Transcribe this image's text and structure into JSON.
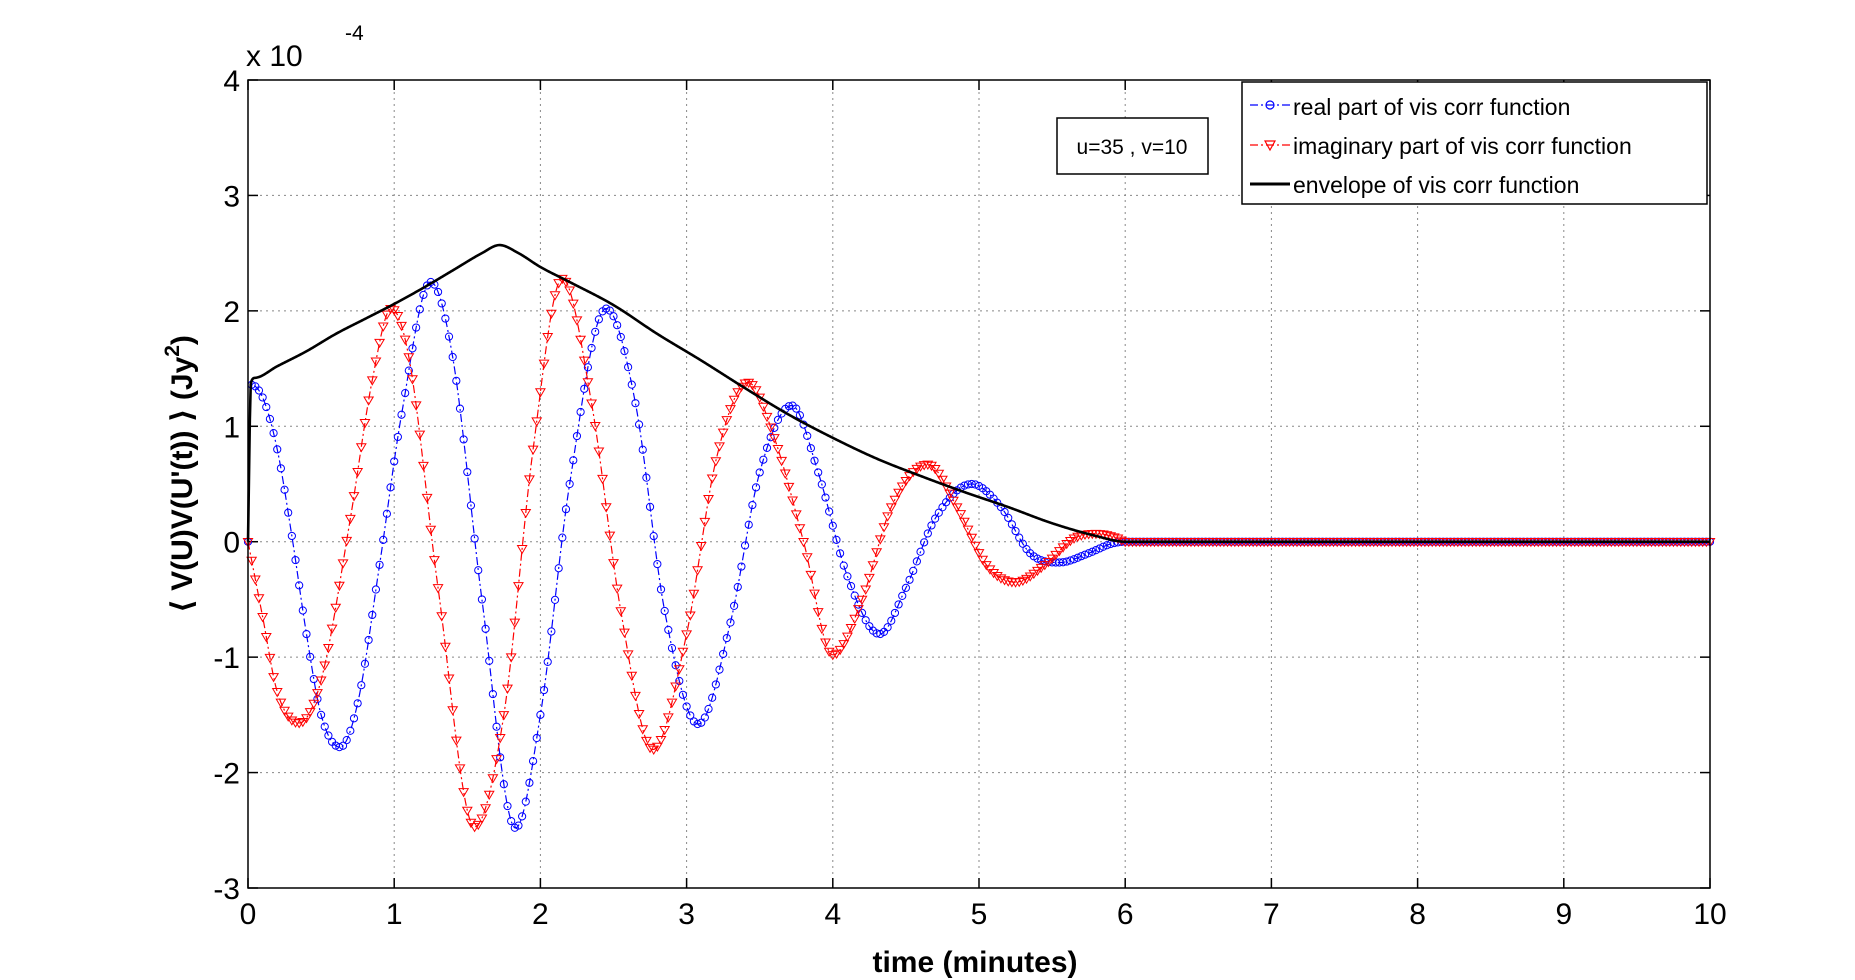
{
  "chart_data": {
    "type": "line",
    "title": "",
    "xlabel": "time (minutes)",
    "ylabel": "⟨ V(U)V(U'(t)) ⟩ (Jy",
    "ylabel_sup": "2",
    "ylabel_tail": ")",
    "xlim": [
      0,
      10
    ],
    "ylim": [
      -3,
      4
    ],
    "y_scale_prefix": "x 10",
    "y_scale_exponent": "-4",
    "xticks": [
      "0",
      "1",
      "2",
      "3",
      "4",
      "5",
      "6",
      "7",
      "8",
      "9",
      "10"
    ],
    "yticks": [
      "-3",
      "-2",
      "-1",
      "0",
      "1",
      "2",
      "3",
      "4"
    ],
    "grid": true,
    "legend_position": "top-right",
    "annotation": "u=35 , v=10",
    "envelope_peak_time": 1.72,
    "envelope_peak_value": 2.57,
    "signal_end_time": 6.0,
    "series": [
      {
        "name": "real part of vis corr function",
        "color": "#0000ff",
        "marker": "circle",
        "line": "dashdot",
        "x": [
          0,
          0.02,
          0.1,
          0.2,
          0.3,
          0.4,
          0.5,
          0.63,
          0.75,
          0.9,
          1.05,
          1.25,
          1.4,
          1.6,
          1.83,
          2.0,
          2.2,
          2.45,
          2.65,
          2.85,
          3.08,
          3.3,
          3.5,
          3.72,
          3.9,
          4.1,
          4.32,
          4.5,
          4.7,
          4.95,
          5.15,
          5.35,
          5.55,
          5.75,
          5.9,
          6.0,
          10
        ],
        "values": [
          0,
          1.36,
          1.25,
          0.8,
          0.05,
          -0.8,
          -1.5,
          -1.78,
          -1.4,
          -0.2,
          1.1,
          2.25,
          1.6,
          -0.5,
          -2.48,
          -1.5,
          0.5,
          2.02,
          1.2,
          -0.6,
          -1.58,
          -0.7,
          0.6,
          1.18,
          0.6,
          -0.3,
          -0.8,
          -0.4,
          0.2,
          0.5,
          0.3,
          -0.1,
          -0.18,
          -0.1,
          -0.02,
          0,
          0
        ]
      },
      {
        "name": "imaginary part of vis corr function",
        "color": "#ff0000",
        "marker": "triangle-down",
        "line": "dashdot",
        "x": [
          0,
          0.1,
          0.2,
          0.35,
          0.5,
          0.7,
          0.85,
          0.98,
          1.1,
          1.3,
          1.55,
          1.75,
          1.95,
          2.15,
          2.35,
          2.55,
          2.77,
          3.0,
          3.2,
          3.42,
          3.6,
          3.8,
          4.0,
          4.2,
          4.4,
          4.65,
          4.85,
          5.05,
          5.25,
          5.45,
          5.65,
          5.8,
          5.95,
          6.0,
          10
        ],
        "values": [
          0,
          -0.65,
          -1.3,
          -1.57,
          -1.2,
          0.2,
          1.4,
          2.02,
          1.6,
          -0.4,
          -2.47,
          -1.5,
          0.8,
          2.28,
          1.2,
          -0.6,
          -1.8,
          -0.8,
          0.7,
          1.38,
          0.9,
          0,
          -0.98,
          -0.5,
          0.3,
          0.67,
          0.3,
          -0.2,
          -0.35,
          -0.2,
          0.03,
          0.07,
          0.03,
          0,
          0
        ]
      },
      {
        "name": "envelope of vis corr function",
        "color": "#000000",
        "marker": "none",
        "line": "solid",
        "x": [
          0,
          0.02,
          0.05,
          0.2,
          0.4,
          0.6,
          0.8,
          1.0,
          1.2,
          1.4,
          1.6,
          1.72,
          1.85,
          2.0,
          2.2,
          2.5,
          2.8,
          3.1,
          3.4,
          3.7,
          4.0,
          4.3,
          4.6,
          4.9,
          5.2,
          5.5,
          5.8,
          6.0,
          10
        ],
        "values": [
          0,
          1.38,
          1.42,
          1.52,
          1.65,
          1.8,
          1.93,
          2.06,
          2.2,
          2.35,
          2.5,
          2.57,
          2.5,
          2.38,
          2.25,
          2.05,
          1.8,
          1.57,
          1.33,
          1.1,
          0.9,
          0.72,
          0.57,
          0.43,
          0.3,
          0.16,
          0.05,
          0,
          0
        ]
      }
    ]
  }
}
